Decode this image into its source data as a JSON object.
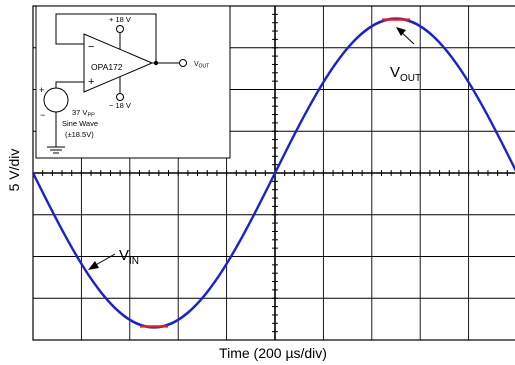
{
  "chart_data": {
    "type": "line",
    "xlabel": "Time (200 µs/div)",
    "ylabel": "5 V/div",
    "x_divisions": 10,
    "y_divisions": 8,
    "grid": true,
    "series": [
      {
        "name": "VIN",
        "shape": "sine",
        "amplitude_v": 18.5,
        "period_divisions": 10
      },
      {
        "name": "VOUT",
        "shape": "sine-clipped",
        "amplitude_v": 18.5,
        "period_divisions": 10,
        "clip_color": "#e02020"
      }
    ],
    "annotations": [
      {
        "target": "VOUT",
        "main": "V",
        "sub": "OUT"
      },
      {
        "target": "VIN",
        "main": "V",
        "sub": "IN"
      }
    ],
    "colors": {
      "trace": "#1c24c8",
      "clip": "#e02020",
      "grid": "#000000"
    }
  },
  "inset": {
    "supply_pos": "+ 18 V",
    "supply_neg": "− 18 V",
    "opamp_name": "OPA172",
    "minus_sign": "−",
    "plus_sign": "+",
    "src_plus": "+",
    "src_minus": "−",
    "output_label": {
      "main": "V",
      "sub": "OUT"
    },
    "source_amp": {
      "main": "37 V",
      "sub": "PP"
    },
    "source_line2": "Sine Wave",
    "source_line3": "(±18.5V)"
  }
}
